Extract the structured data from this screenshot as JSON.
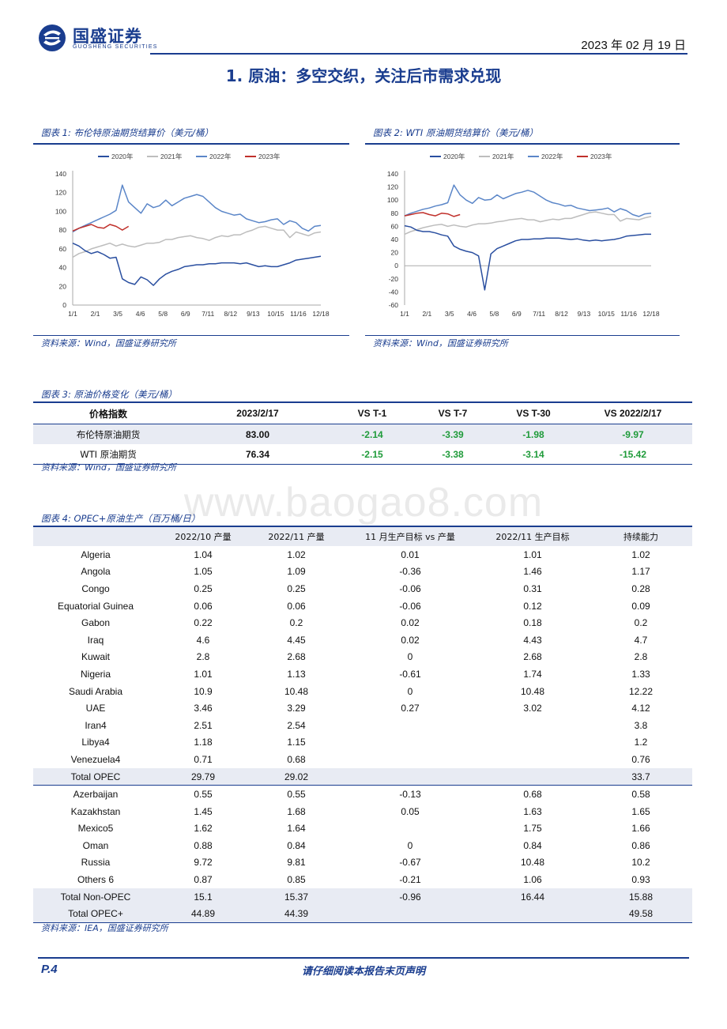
{
  "header": {
    "logo_cn": "国盛证券",
    "logo_en": "GUOSHENG SECURITIES",
    "date": "2023 年 02 月 19 日"
  },
  "section_title": "1. 原油：多空交织，关注后市需求兑现",
  "fig1": {
    "caption": "图表 1:  布伦特原油期货结算价（美元/桶）",
    "source": "资料来源：Wind，国盛证券研究所"
  },
  "fig2": {
    "caption": "图表 2:  WTI 原油期货结算价（美元/桶）",
    "source": "资料来源：Wind，国盛证券研究所"
  },
  "chart_data": [
    {
      "type": "line",
      "title": "布伦特原油期货结算价（美元/桶）",
      "x_ticks": [
        "1/1",
        "2/1",
        "3/5",
        "4/6",
        "5/8",
        "6/9",
        "7/11",
        "8/12",
        "9/13",
        "10/15",
        "11/16",
        "12/18"
      ],
      "ylim": [
        0,
        140
      ],
      "y_ticks": [
        0,
        20,
        40,
        60,
        80,
        100,
        120,
        140
      ],
      "grid": false,
      "legend": "top",
      "series": [
        {
          "name": "2020年",
          "color": "#2a4fa0",
          "values": [
            66,
            63,
            58,
            55,
            57,
            54,
            50,
            51,
            28,
            24,
            22,
            30,
            27,
            21,
            28,
            33,
            36,
            38,
            41,
            42,
            43,
            43,
            44,
            44,
            45,
            45,
            45,
            44,
            45,
            43,
            41,
            42,
            41,
            41,
            43,
            45,
            48,
            49,
            50,
            51,
            52
          ]
        },
        {
          "name": "2021年",
          "color": "#bdbdbd",
          "values": [
            51,
            55,
            57,
            60,
            62,
            64,
            66,
            63,
            65,
            63,
            62,
            64,
            66,
            66,
            67,
            70,
            70,
            72,
            73,
            74,
            72,
            71,
            69,
            72,
            74,
            73,
            75,
            75,
            78,
            80,
            83,
            84,
            82,
            80,
            80,
            72,
            78,
            76,
            74,
            77,
            78
          ]
        },
        {
          "name": "2022年",
          "color": "#5b86c8",
          "values": [
            78,
            82,
            85,
            88,
            91,
            94,
            97,
            101,
            128,
            110,
            104,
            98,
            108,
            104,
            106,
            112,
            106,
            110,
            114,
            116,
            118,
            116,
            110,
            104,
            100,
            98,
            96,
            97,
            92,
            90,
            88,
            89,
            91,
            92,
            86,
            90,
            88,
            82,
            79,
            84,
            85
          ]
        },
        {
          "name": "2023年",
          "color": "#c0302b",
          "values": [
            79,
            82,
            84,
            86,
            83,
            82,
            86,
            84,
            80,
            84
          ]
        }
      ]
    },
    {
      "type": "line",
      "title": "WTI 原油期货结算价（美元/桶）",
      "x_ticks": [
        "1/1",
        "2/1",
        "3/5",
        "4/6",
        "5/8",
        "6/9",
        "7/11",
        "8/12",
        "9/13",
        "10/15",
        "11/16",
        "12/18"
      ],
      "ylim": [
        -60,
        140
      ],
      "y_ticks": [
        -60,
        -40,
        -20,
        0,
        20,
        40,
        60,
        80,
        100,
        120,
        140
      ],
      "grid": false,
      "legend": "top",
      "series": [
        {
          "name": "2020年",
          "color": "#2a4fa0",
          "values": [
            61,
            59,
            54,
            52,
            52,
            50,
            47,
            45,
            30,
            25,
            22,
            20,
            15,
            -37,
            18,
            26,
            30,
            34,
            38,
            40,
            40,
            41,
            41,
            42,
            42,
            42,
            41,
            40,
            41,
            39,
            38,
            39,
            38,
            39,
            40,
            42,
            45,
            46,
            47,
            48,
            48
          ]
        },
        {
          "name": "2021年",
          "color": "#bdbdbd",
          "values": [
            48,
            52,
            55,
            58,
            60,
            62,
            63,
            60,
            62,
            60,
            59,
            62,
            64,
            64,
            65,
            67,
            68,
            70,
            71,
            72,
            70,
            70,
            67,
            69,
            71,
            70,
            72,
            72,
            75,
            78,
            81,
            82,
            80,
            78,
            78,
            68,
            72,
            71,
            70,
            73,
            75
          ]
        },
        {
          "name": "2022年",
          "color": "#5b86c8",
          "values": [
            76,
            80,
            83,
            86,
            88,
            91,
            93,
            96,
            123,
            108,
            100,
            95,
            104,
            100,
            101,
            108,
            102,
            106,
            110,
            112,
            115,
            112,
            106,
            100,
            96,
            94,
            91,
            92,
            88,
            86,
            84,
            85,
            86,
            88,
            82,
            87,
            84,
            78,
            75,
            79,
            80
          ]
        },
        {
          "name": "2023年",
          "color": "#c0302b",
          "values": [
            76,
            78,
            80,
            81,
            78,
            76,
            80,
            79,
            75,
            78
          ]
        }
      ]
    }
  ],
  "fig3": {
    "caption": "图表 3:  原油价格变化（美元/桶）",
    "source": "资料来源：Wind，国盛证券研究所",
    "headers": [
      "价格指数",
      "2023/2/17",
      "VS T-1",
      "VS T-7",
      "VS T-30",
      "VS 2022/2/17"
    ],
    "rows": [
      [
        "布伦特原油期货",
        "83.00",
        "-2.14",
        "-3.39",
        "-1.98",
        "-9.97"
      ],
      [
        "WTI 原油期货",
        "76.34",
        "-2.15",
        "-3.38",
        "-3.14",
        "-15.42"
      ]
    ]
  },
  "fig4": {
    "caption": "图表 4:  OPEC+原油生产（百万桶/日）",
    "source": "资料来源：IEA，国盛证券研究所",
    "headers": [
      "",
      "2022/10 产量",
      "2022/11 产量",
      "11 月生产目标 vs 产量",
      "2022/11 生产目标",
      "持续能力"
    ],
    "rows": [
      [
        "Algeria",
        "1.04",
        "1.02",
        "0.01",
        "1.01",
        "1.02"
      ],
      [
        "Angola",
        "1.05",
        "1.09",
        "-0.36",
        "1.46",
        "1.17"
      ],
      [
        "Congo",
        "0.25",
        "0.25",
        "-0.06",
        "0.31",
        "0.28"
      ],
      [
        "Equatorial Guinea",
        "0.06",
        "0.06",
        "-0.06",
        "0.12",
        "0.09"
      ],
      [
        "Gabon",
        "0.22",
        "0.2",
        "0.02",
        "0.18",
        "0.2"
      ],
      [
        "Iraq",
        "4.6",
        "4.45",
        "0.02",
        "4.43",
        "4.7"
      ],
      [
        "Kuwait",
        "2.8",
        "2.68",
        "0",
        "2.68",
        "2.8"
      ],
      [
        "Nigeria",
        "1.01",
        "1.13",
        "-0.61",
        "1.74",
        "1.33"
      ],
      [
        "Saudi Arabia",
        "10.9",
        "10.48",
        "0",
        "10.48",
        "12.22"
      ],
      [
        "UAE",
        "3.46",
        "3.29",
        "0.27",
        "3.02",
        "4.12"
      ],
      [
        "Iran4",
        "2.51",
        "2.54",
        "",
        "",
        "3.8"
      ],
      [
        "Libya4",
        "1.18",
        "1.15",
        "",
        "",
        "1.2"
      ],
      [
        "Venezuela4",
        "0.71",
        "0.68",
        "",
        "",
        "0.76"
      ],
      [
        "Total OPEC",
        "29.79",
        "29.02",
        "",
        "",
        "33.7"
      ],
      [
        "Azerbaijan",
        "0.55",
        "0.55",
        "-0.13",
        "0.68",
        "0.58"
      ],
      [
        "Kazakhstan",
        "1.45",
        "1.68",
        "0.05",
        "1.63",
        "1.65"
      ],
      [
        "Mexico5",
        "1.62",
        "1.64",
        "",
        "1.75",
        "1.66"
      ],
      [
        "Oman",
        "0.88",
        "0.84",
        "0",
        "0.84",
        "0.86"
      ],
      [
        "Russia",
        "9.72",
        "9.81",
        "-0.67",
        "10.48",
        "10.2"
      ],
      [
        "Others 6",
        "0.87",
        "0.85",
        "-0.21",
        "1.06",
        "0.93"
      ],
      [
        "Total Non-OPEC",
        "15.1",
        "15.37",
        "-0.96",
        "16.44",
        "15.88"
      ],
      [
        "Total OPEC+",
        "44.89",
        "44.39",
        "",
        "",
        "49.58"
      ]
    ]
  },
  "watermark": "www.baogao8.com",
  "footer": {
    "page": "P.4",
    "note": "请仔细阅读本报告末页声明"
  }
}
